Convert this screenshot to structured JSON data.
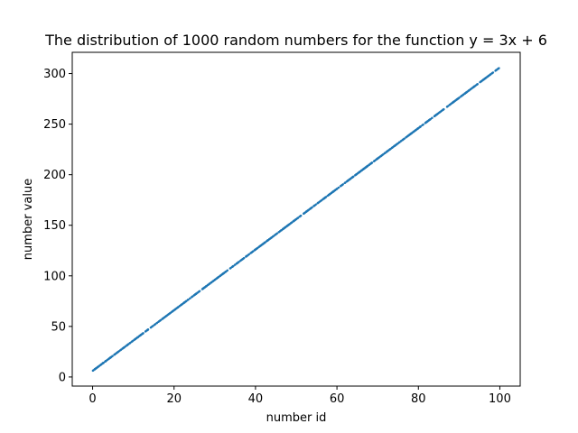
{
  "chart_data": {
    "type": "scatter",
    "title": "The distribution of 1000 random numbers for the function y = 3x + 6",
    "xlabel": "number id",
    "ylabel": "number value",
    "xlim": [
      -5,
      105
    ],
    "ylim": [
      -9.0,
      321.0
    ],
    "xticks": [
      0,
      20,
      40,
      60,
      80,
      100
    ],
    "xtick_labels": [
      "0",
      "20",
      "40",
      "60",
      "80",
      "100"
    ],
    "yticks": [
      0,
      50,
      100,
      150,
      200,
      250,
      300
    ],
    "ytick_labels": [
      "0",
      "50",
      "100",
      "150",
      "200",
      "250",
      "300"
    ],
    "grid": false,
    "series": [
      {
        "point_count": 1000,
        "x_range": [
          0,
          100
        ],
        "slope": 3,
        "intercept": 6,
        "color": "#1f77b4"
      }
    ]
  }
}
